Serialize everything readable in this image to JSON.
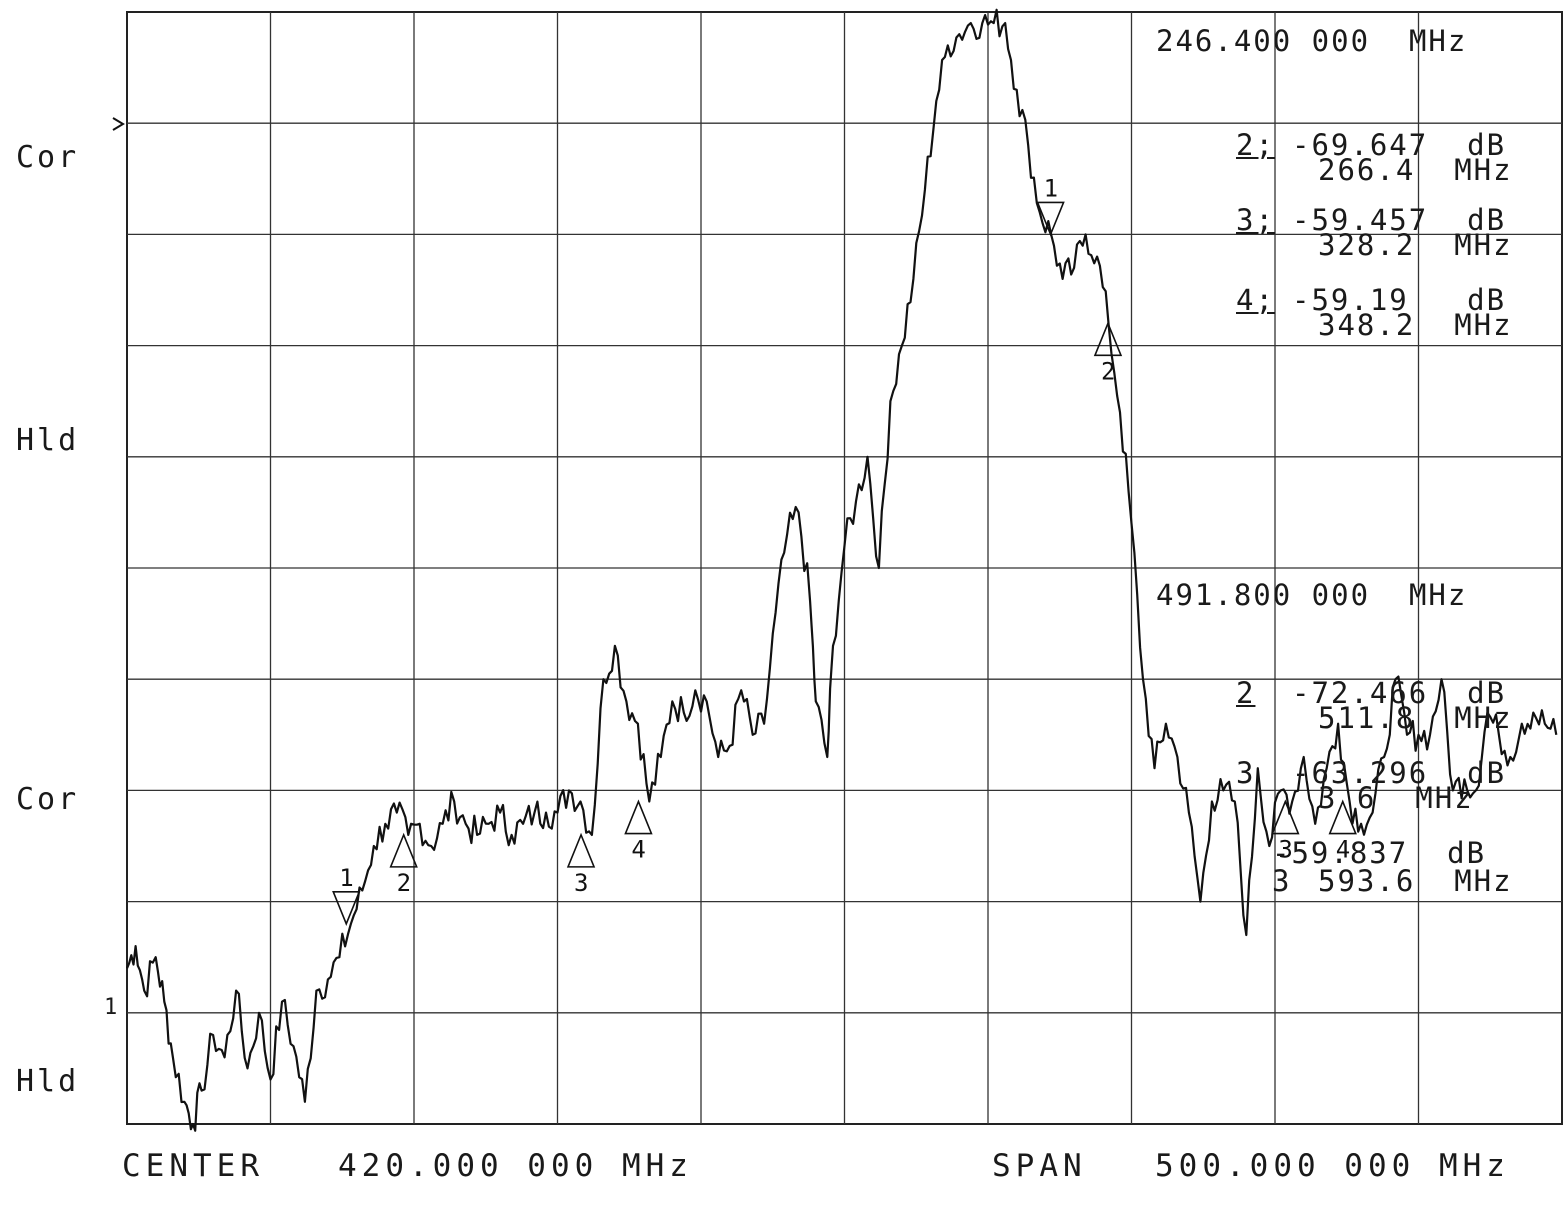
{
  "side_labels": {
    "top_mode": "Cor",
    "top_hold": "Hld",
    "bottom_mode": "Cor",
    "bottom_hold": "Hld",
    "ref_marker": "1"
  },
  "upper_readout": {
    "freq": "246.400 000  MHz",
    "markers": [
      {
        "id": "2;",
        "value": "-69.647  dB",
        "freq": "266.4  MHz"
      },
      {
        "id": "3;",
        "value": "-59.457  dB",
        "freq": "328.2  MHz"
      },
      {
        "id": "4;",
        "value": "-59.19   dB",
        "freq": "348.2  MHz"
      }
    ]
  },
  "lower_readout": {
    "freq": "491.800 000  MHz",
    "markers": [
      {
        "id": "2",
        "value": "-72.466  dB",
        "freq": "511.8  MHz"
      },
      {
        "id": "3",
        "value": "-63.296  dB",
        "freq": "3 6  MHz"
      },
      {
        "id": "3",
        "value": "-59.837  dB",
        "freq": "593.6  MHz"
      }
    ]
  },
  "footer": {
    "center_label": "CENTER",
    "center_value": "420.000 000 MHz",
    "span_label": "SPAN",
    "span_value": "500.000 000 MHz"
  },
  "chart_data": {
    "type": "line",
    "xlabel": "",
    "ylabel": "",
    "xlim": [
      170,
      670
    ],
    "ylim": [
      0,
      100
    ],
    "units_note": "x in MHz (center 420, span 500); y in relative screen scale 0-100 (10 divisions)",
    "grid": true,
    "series": [
      {
        "x": [
          170,
          173,
          176,
          180,
          183,
          186,
          190,
          193,
          196,
          200,
          204,
          208,
          212,
          216,
          220,
          224,
          228,
          232,
          236,
          240,
          244,
          248,
          252,
          256,
          260,
          264,
          268,
          272,
          276,
          280,
          284,
          288,
          292,
          296,
          300,
          304,
          308,
          312,
          316,
          320,
          324,
          328,
          332,
          336,
          340,
          344,
          348,
          352,
          356,
          360,
          364,
          368,
          372,
          376,
          380,
          384,
          388,
          392,
          396,
          400,
          404,
          408,
          410,
          414,
          416,
          420,
          424,
          428,
          432,
          436,
          440,
          444,
          448,
          452,
          456,
          460,
          464,
          468,
          472,
          476,
          480,
          484,
          488,
          492,
          496,
          500,
          504,
          508,
          512,
          516,
          520,
          524,
          528,
          532,
          536,
          540,
          544,
          548,
          552,
          556,
          560,
          564,
          568,
          572,
          576,
          580,
          584,
          588,
          592,
          596,
          600,
          604,
          608,
          612,
          616,
          620,
          624,
          628,
          632,
          636,
          640,
          644,
          648,
          652,
          656,
          660,
          664,
          668
        ],
        "y": [
          14,
          16,
          12,
          15,
          11,
          6,
          2,
          0,
          3,
          8,
          6,
          12,
          5,
          10,
          4,
          11,
          7,
          2,
          12,
          13,
          15,
          18,
          21,
          25,
          27,
          28,
          26,
          27,
          25,
          27,
          29,
          27,
          26,
          27,
          28,
          26,
          27,
          28,
          28,
          28,
          30,
          29,
          26,
          40,
          43,
          38,
          36,
          29,
          33,
          38,
          37,
          39,
          38,
          33,
          34,
          39,
          35,
          36,
          46,
          53,
          55,
          47,
          38,
          33,
          43,
          52,
          56,
          60,
          50,
          65,
          70,
          76,
          84,
          92,
          97,
          98,
          99,
          99,
          99,
          99,
          93,
          88,
          82,
          80,
          76,
          77,
          80,
          78,
          72,
          64,
          54,
          40,
          32,
          36,
          33,
          28,
          20,
          29,
          30,
          29,
          17,
          32,
          25,
          30,
          29,
          33,
          27,
          32,
          36,
          29,
          27,
          28,
          33,
          40,
          35,
          35,
          35,
          40,
          30,
          31,
          30,
          37,
          35,
          33,
          36,
          37,
          36,
          35
        ]
      },
      {
        "x": [
          170,
          173,
          176,
          180,
          183,
          186,
          190,
          193,
          196,
          200,
          204,
          208,
          212,
          216,
          220,
          224,
          228,
          232,
          236,
          240,
          244,
          248,
          252,
          256,
          260,
          264,
          268,
          272,
          276,
          280,
          284,
          288,
          292,
          296,
          300,
          304,
          308,
          312,
          316,
          320,
          324,
          328,
          332,
          336,
          340,
          344,
          348,
          352,
          356,
          360,
          364,
          368,
          372,
          376,
          380,
          384,
          388,
          392,
          396,
          400,
          404,
          408,
          410,
          414,
          416,
          420,
          424,
          428,
          432,
          436,
          440,
          444,
          448,
          452,
          456,
          460,
          464,
          468,
          472,
          476,
          480,
          484,
          488,
          492,
          496,
          500,
          504,
          508,
          512,
          516,
          520,
          524,
          528,
          532,
          536,
          540,
          544,
          548,
          552,
          556,
          560,
          564,
          568,
          572,
          576,
          580,
          584,
          588,
          592,
          596,
          600,
          604,
          608,
          612,
          616,
          620,
          624,
          628,
          632,
          636,
          640,
          644,
          648,
          652,
          656,
          660,
          664,
          668
        ],
        "y": [
          null,
          null,
          null,
          null,
          null,
          null,
          null,
          null,
          null,
          null,
          null,
          null,
          null,
          null,
          null,
          null,
          null,
          null,
          null,
          null,
          null,
          null,
          null,
          null,
          null,
          null,
          null,
          null,
          null,
          null,
          null,
          null,
          null,
          null,
          null,
          null,
          null,
          null,
          null,
          null,
          null,
          null,
          null,
          null,
          null,
          null,
          null,
          null,
          null,
          null,
          null,
          null,
          null,
          null,
          null,
          null,
          null,
          null,
          null,
          null,
          null,
          null,
          null,
          null,
          null,
          null,
          null,
          null,
          null,
          null,
          null,
          null,
          null,
          null,
          null,
          null,
          null,
          null,
          null,
          null,
          null,
          null,
          null,
          null,
          null,
          null,
          null,
          null,
          null,
          null,
          null,
          null,
          null,
          null,
          null,
          null,
          null,
          null,
          null,
          null,
          null,
          null,
          null,
          null,
          null,
          null,
          null,
          null,
          null,
          null,
          null,
          null,
          null,
          null,
          null,
          null,
          null,
          null,
          null,
          null,
          null,
          null,
          null,
          null,
          null,
          null,
          null,
          null
        ]
      }
    ],
    "upper_trace_y": [
      null
    ],
    "markers": [
      {
        "label": "1",
        "x": 246.4,
        "type": "down"
      },
      {
        "label": "2",
        "x": 266.4,
        "type": "up"
      },
      {
        "label": "3",
        "x": 328.2,
        "type": "up"
      },
      {
        "label": "4",
        "x": 348.2,
        "type": "up"
      },
      {
        "label": "1",
        "x": 491.8,
        "type": "down"
      },
      {
        "label": "2",
        "x": 511.8,
        "type": "up"
      },
      {
        "label": "3",
        "x": 573.6,
        "type": "up"
      },
      {
        "label": "4",
        "x": 593.6,
        "type": "up"
      }
    ]
  }
}
